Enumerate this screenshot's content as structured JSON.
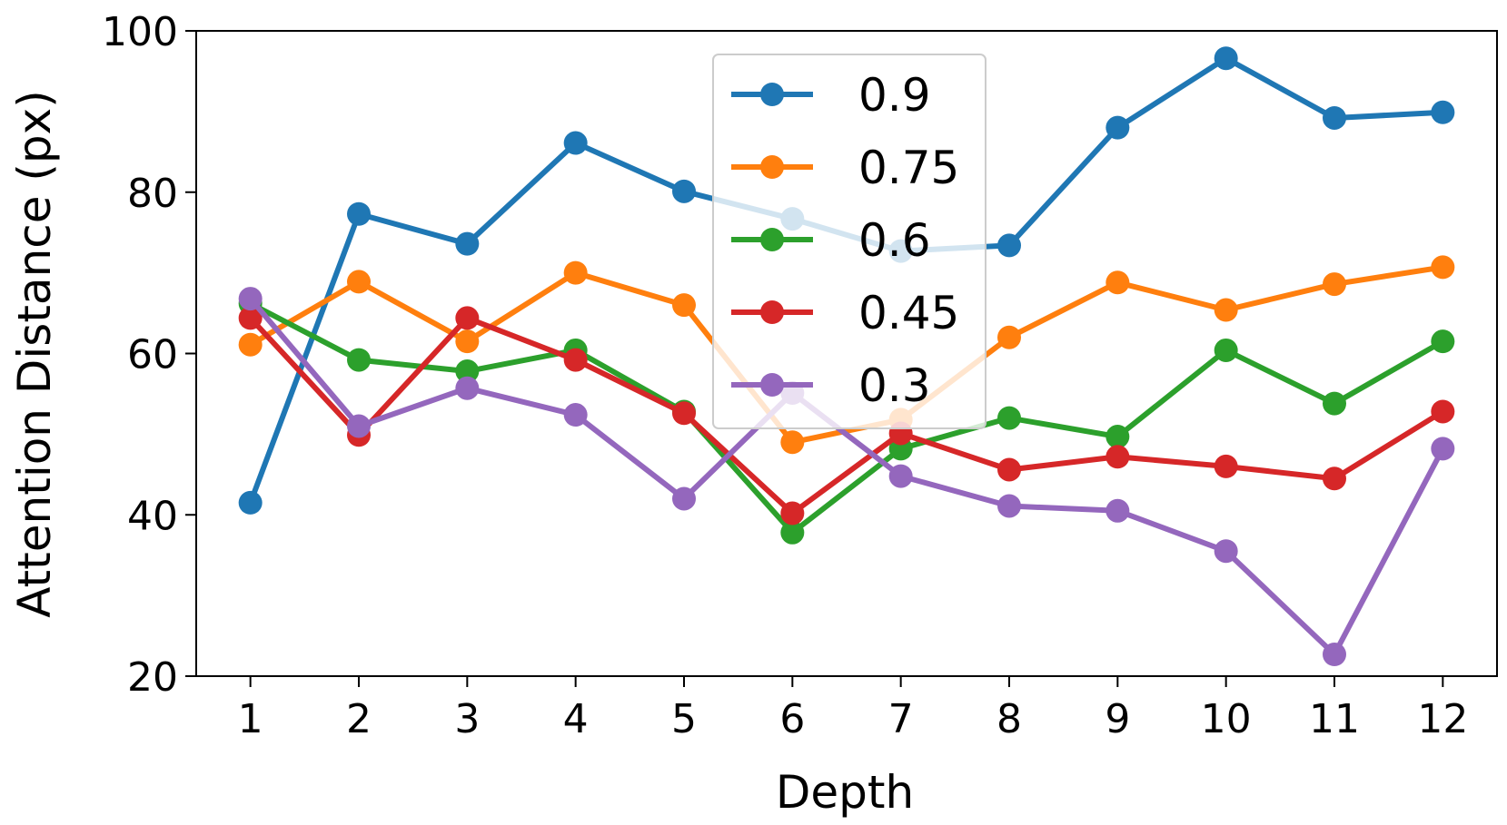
{
  "chart_data": {
    "type": "line",
    "title": "",
    "xlabel": "Depth",
    "ylabel": "Attention Distance (px)",
    "x": [
      1,
      2,
      3,
      4,
      5,
      6,
      7,
      8,
      9,
      10,
      11,
      12
    ],
    "xlim": [
      0.5,
      12.5
    ],
    "ylim": [
      20,
      100
    ],
    "yticks": [
      20,
      40,
      60,
      80,
      100
    ],
    "legend_position": "upper-center",
    "series": [
      {
        "name": "0.9",
        "color": "#1f77b4",
        "values": [
          41.5,
          77.3,
          73.6,
          86.1,
          80.1,
          76.7,
          72.7,
          73.4,
          88.0,
          96.6,
          89.2,
          89.9
        ]
      },
      {
        "name": "0.75",
        "color": "#ff7f0e",
        "values": [
          61.1,
          68.9,
          61.5,
          70.0,
          66.0,
          49.0,
          51.8,
          62.0,
          68.8,
          65.4,
          68.6,
          70.7
        ]
      },
      {
        "name": "0.6",
        "color": "#2ca02c",
        "values": [
          66.2,
          59.2,
          57.8,
          60.4,
          52.8,
          37.8,
          48.2,
          52.0,
          49.7,
          60.4,
          53.8,
          61.5
        ]
      },
      {
        "name": "0.45",
        "color": "#d62728",
        "values": [
          64.4,
          49.9,
          64.4,
          59.2,
          52.6,
          40.2,
          50.1,
          45.6,
          47.2,
          46.0,
          44.5,
          52.8
        ]
      },
      {
        "name": "0.3",
        "color": "#9467bd",
        "values": [
          66.8,
          51.0,
          55.7,
          52.4,
          42.0,
          55.1,
          44.8,
          41.1,
          40.5,
          35.5,
          22.7,
          48.2
        ]
      }
    ]
  }
}
